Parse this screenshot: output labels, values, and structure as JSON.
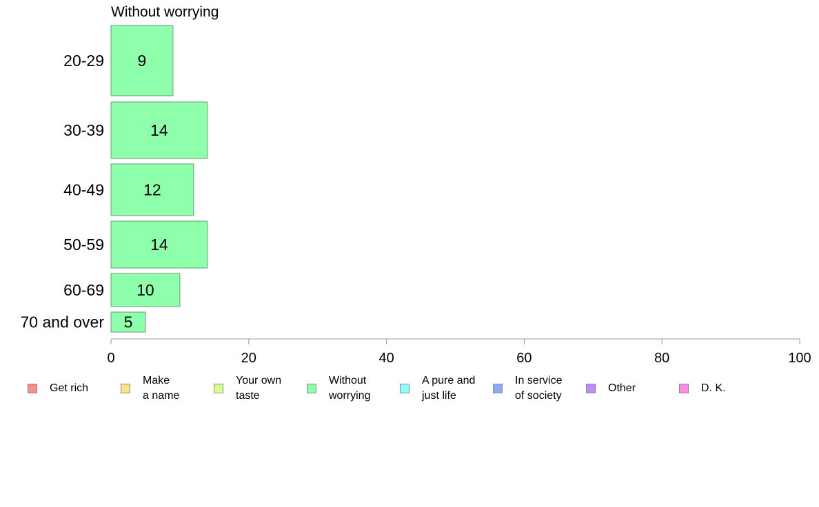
{
  "chart_data": {
    "type": "bar",
    "orientation": "horizontal",
    "title": "Without worrying",
    "categories": [
      "20-29",
      "30-39",
      "40-49",
      "50-59",
      "60-69",
      "70 and over"
    ],
    "series": [
      {
        "name": "Without worrying",
        "values": [
          9,
          14,
          12,
          14,
          10,
          5
        ],
        "color": "#8effab"
      }
    ],
    "xlim": [
      0,
      100
    ],
    "xticks": [
      0,
      20,
      40,
      60,
      80,
      100
    ],
    "xlabel": "",
    "ylabel": "",
    "grid": false,
    "bar_width_encodes": "relative group size",
    "legend_position": "bottom",
    "legend": [
      {
        "label": "Get rich",
        "color": "#ff8a8a"
      },
      {
        "label": "Make\na name",
        "color": "#ffe38a"
      },
      {
        "label": "Your own\ntaste",
        "color": "#d4ff8a"
      },
      {
        "label": "Without\nworrying",
        "color": "#8effab"
      },
      {
        "label": "A pure and\njust life",
        "color": "#8affff"
      },
      {
        "label": "In service\nof society",
        "color": "#8aabff"
      },
      {
        "label": "Other",
        "color": "#c08aff"
      },
      {
        "label": "D. K.",
        "color": "#ff8ae8"
      }
    ]
  }
}
